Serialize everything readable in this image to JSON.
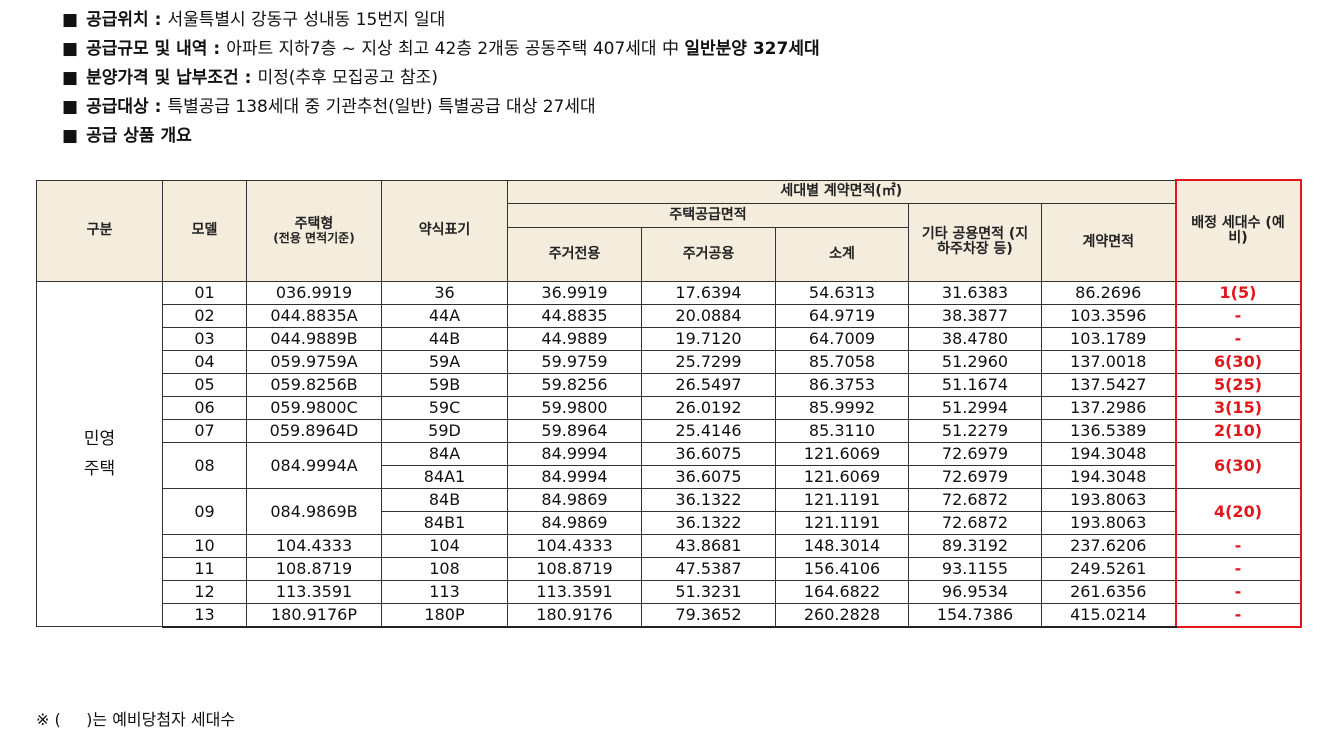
{
  "bullets": [
    {
      "label": "공급위치",
      "text": "서울특별시 강동구 성내동 15번지 일대",
      "emphasis": ""
    },
    {
      "label": "공급규모 및 내역",
      "text": "아파트 지하7층 ~ 지상 최고 42층 2개동 공동주택 407세대 中",
      "emphasis": "일반분양 327세대"
    },
    {
      "label": "분양가격 및 납부조건",
      "text": "미정(추후 모집공고 참조)",
      "emphasis": ""
    },
    {
      "label": "공급대상",
      "text": "특별공급 138세대 중 기관추천(일반) 특별공급 대상 27세대",
      "emphasis": ""
    },
    {
      "label": "공급 상품 개요",
      "text": "",
      "emphasis": ""
    }
  ],
  "bullet_marker": "■",
  "bullet_colon": ":",
  "table": {
    "headers": {
      "category": "구분",
      "model": "모델",
      "housing_type": "주택형",
      "housing_type_sub": "(전용 면적기준)",
      "abbr": "약식표기",
      "contract_area_group": "세대별 계약면적(㎡)",
      "supply_area_group": "주택공급면적",
      "exclusive": "주거전용",
      "common": "주거공용",
      "subtotal": "소계",
      "other_common": "기타 공용면적 (지하주차장 등)",
      "contract_area": "계약면적",
      "allotment": "배정 세대수 (예비)"
    },
    "category_value": "민영 주택",
    "rows": [
      {
        "model": "01",
        "type": "036.9919",
        "abbr": "36",
        "exclusive": "36.9919",
        "common": "17.6394",
        "subtotal": "54.6313",
        "other": "31.6383",
        "contract": "86.2696",
        "allot": "1(5)"
      },
      {
        "model": "02",
        "type": "044.8835A",
        "abbr": "44A",
        "exclusive": "44.8835",
        "common": "20.0884",
        "subtotal": "64.9719",
        "other": "38.3877",
        "contract": "103.3596",
        "allot": "-"
      },
      {
        "model": "03",
        "type": "044.9889B",
        "abbr": "44B",
        "exclusive": "44.9889",
        "common": "19.7120",
        "subtotal": "64.7009",
        "other": "38.4780",
        "contract": "103.1789",
        "allot": "-"
      },
      {
        "model": "04",
        "type": "059.9759A",
        "abbr": "59A",
        "exclusive": "59.9759",
        "common": "25.7299",
        "subtotal": "85.7058",
        "other": "51.2960",
        "contract": "137.0018",
        "allot": "6(30)"
      },
      {
        "model": "05",
        "type": "059.8256B",
        "abbr": "59B",
        "exclusive": "59.8256",
        "common": "26.5497",
        "subtotal": "86.3753",
        "other": "51.1674",
        "contract": "137.5427",
        "allot": "5(25)"
      },
      {
        "model": "06",
        "type": "059.9800C",
        "abbr": "59C",
        "exclusive": "59.9800",
        "common": "26.0192",
        "subtotal": "85.9992",
        "other": "51.2994",
        "contract": "137.2986",
        "allot": "3(15)"
      },
      {
        "model": "07",
        "type": "059.8964D",
        "abbr": "59D",
        "exclusive": "59.8964",
        "common": "25.4146",
        "subtotal": "85.3110",
        "other": "51.2279",
        "contract": "136.5389",
        "allot": "2(10)"
      },
      {
        "model": "08",
        "type": "084.9994A",
        "abbr": "84A",
        "exclusive": "84.9994",
        "common": "36.6075",
        "subtotal": "121.6069",
        "other": "72.6979",
        "contract": "194.3048",
        "allot": "6(30)"
      },
      {
        "model": "",
        "type": "",
        "abbr": "84A1",
        "exclusive": "84.9994",
        "common": "36.6075",
        "subtotal": "121.6069",
        "other": "72.6979",
        "contract": "194.3048",
        "allot": ""
      },
      {
        "model": "09",
        "type": "084.9869B",
        "abbr": "84B",
        "exclusive": "84.9869",
        "common": "36.1322",
        "subtotal": "121.1191",
        "other": "72.6872",
        "contract": "193.8063",
        "allot": "4(20)"
      },
      {
        "model": "",
        "type": "",
        "abbr": "84B1",
        "exclusive": "84.9869",
        "common": "36.1322",
        "subtotal": "121.1191",
        "other": "72.6872",
        "contract": "193.8063",
        "allot": ""
      },
      {
        "model": "10",
        "type": "104.4333",
        "abbr": "104",
        "exclusive": "104.4333",
        "common": "43.8681",
        "subtotal": "148.3014",
        "other": "89.3192",
        "contract": "237.6206",
        "allot": "-"
      },
      {
        "model": "11",
        "type": "108.8719",
        "abbr": "108",
        "exclusive": "108.8719",
        "common": "47.5387",
        "subtotal": "156.4106",
        "other": "93.1155",
        "contract": "249.5261",
        "allot": "-"
      },
      {
        "model": "12",
        "type": "113.3591",
        "abbr": "113",
        "exclusive": "113.3591",
        "common": "51.3231",
        "subtotal": "164.6822",
        "other": "96.9534",
        "contract": "261.6356",
        "allot": "-"
      },
      {
        "model": "13",
        "type": "180.9176P",
        "abbr": "180P",
        "exclusive": "180.9176",
        "common": "79.3652",
        "subtotal": "260.2828",
        "other": "154.7386",
        "contract": "415.0214",
        "allot": "-"
      }
    ]
  },
  "note": "※ (     )는 예비당첨자 세대수",
  "colors": {
    "header_bg": "#f4ecdd",
    "allot_red": "#e3161c",
    "border": "#333333"
  }
}
